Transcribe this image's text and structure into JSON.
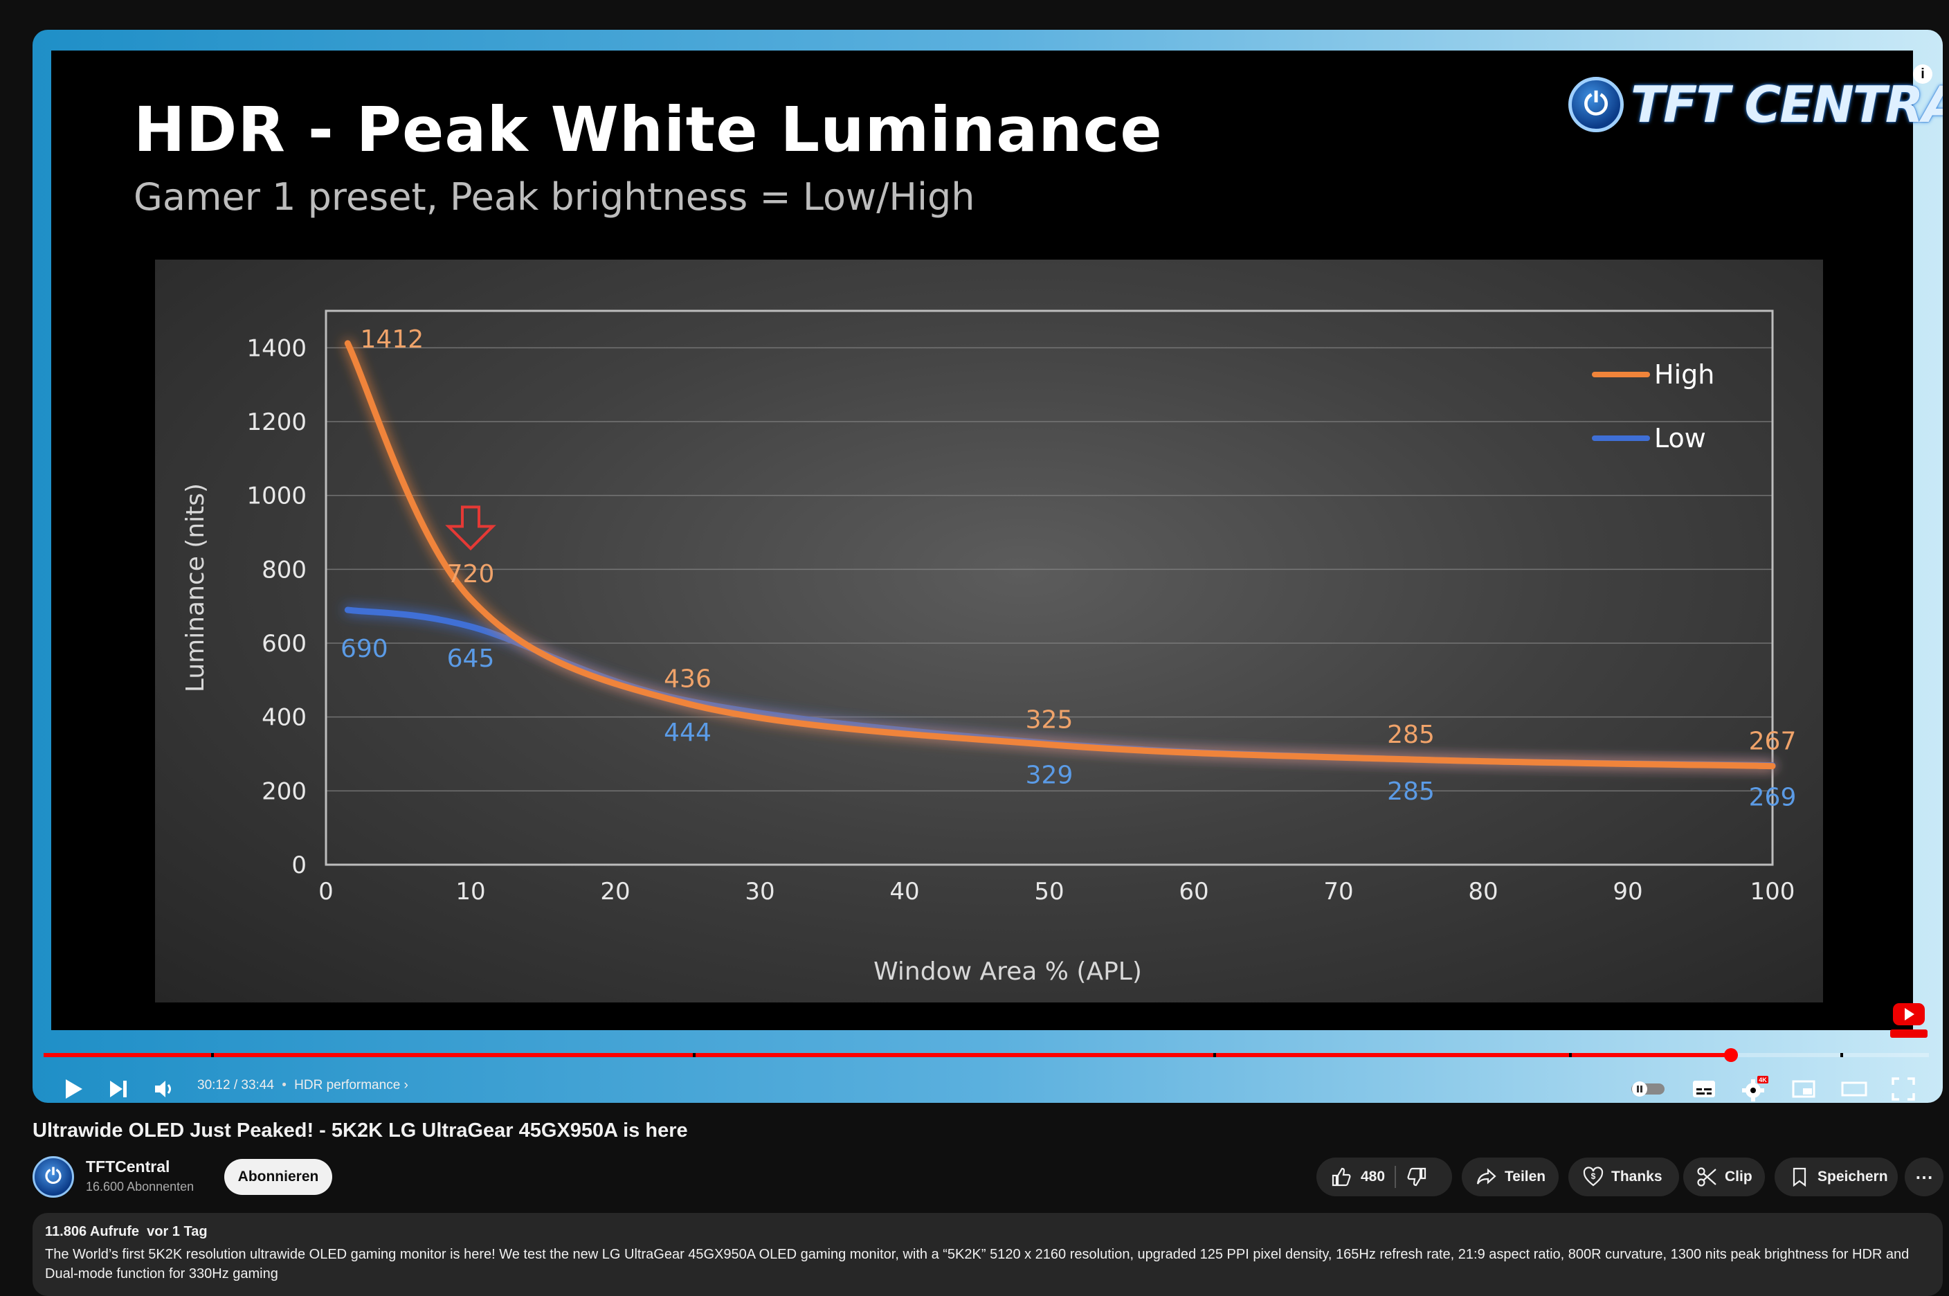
{
  "slide": {
    "title": "HDR - Peak White Luminance",
    "subtitle": "Gamer 1 preset, Peak brightness = Low/High",
    "brand": "TFT CENTRAL",
    "info_icon": "i"
  },
  "chart_data": {
    "type": "line",
    "xlabel": "Window Area % (APL)",
    "ylabel": "Luminance (nits)",
    "xlim": [
      0,
      100
    ],
    "ylim": [
      0,
      1500
    ],
    "xticks": [
      0,
      10,
      20,
      30,
      40,
      50,
      60,
      70,
      80,
      90,
      100
    ],
    "yticks": [
      0,
      200,
      400,
      600,
      800,
      1000,
      1200,
      1400
    ],
    "grid": true,
    "legend": "top-right",
    "series": [
      {
        "name": "High",
        "color": "#f0843a",
        "x": [
          1.5,
          10,
          25,
          50,
          75,
          100
        ],
        "values": [
          1412,
          720,
          436,
          325,
          285,
          267
        ],
        "labels": [
          "1412",
          "720",
          "436",
          "325",
          "285",
          "267"
        ]
      },
      {
        "name": "Low",
        "color": "#3f6fd6",
        "x": [
          1.5,
          10,
          25,
          50,
          75,
          100
        ],
        "values": [
          690,
          645,
          444,
          329,
          285,
          269
        ],
        "labels": [
          "690",
          "645",
          "444",
          "329",
          "285",
          "269"
        ]
      }
    ],
    "annotation": {
      "type": "down-arrow",
      "x": 10,
      "y": 905,
      "color": "#e53935"
    }
  },
  "player": {
    "time_current": "30:12",
    "time_separator": "/",
    "time_total": "33:44",
    "chapter": "HDR performance",
    "chapter_bullet": "•",
    "progress": 0.895,
    "quality_badge": "4K",
    "subscribe_badge": "SUBSCRIBE"
  },
  "video": {
    "title": "Ultrawide OLED Just Peaked! - 5K2K LG UltraGear 45GX950A is here",
    "channel_name": "TFTCentral",
    "channel_subs": "16.600 Abonnenten",
    "subscribe_label": "Abonnieren",
    "likes": "480",
    "share_label": "Teilen",
    "thanks_label": "Thanks",
    "clip_label": "Clip",
    "save_label": "Speichern",
    "more_label": "⋯",
    "views": "11.806 Aufrufe",
    "age": "vor 1 Tag",
    "description": "The World’s first 5K2K resolution ultrawide OLED gaming monitor is here! We test the new LG UltraGear 45GX950A OLED gaming monitor, with a “5K2K” 5120 x 2160 resolution, upgraded 125 PPI pixel density, 165Hz refresh rate, 21:9 aspect ratio, 800R curvature, 1300 nits peak brightness for HDR and Dual-mode function for 330Hz gaming"
  }
}
